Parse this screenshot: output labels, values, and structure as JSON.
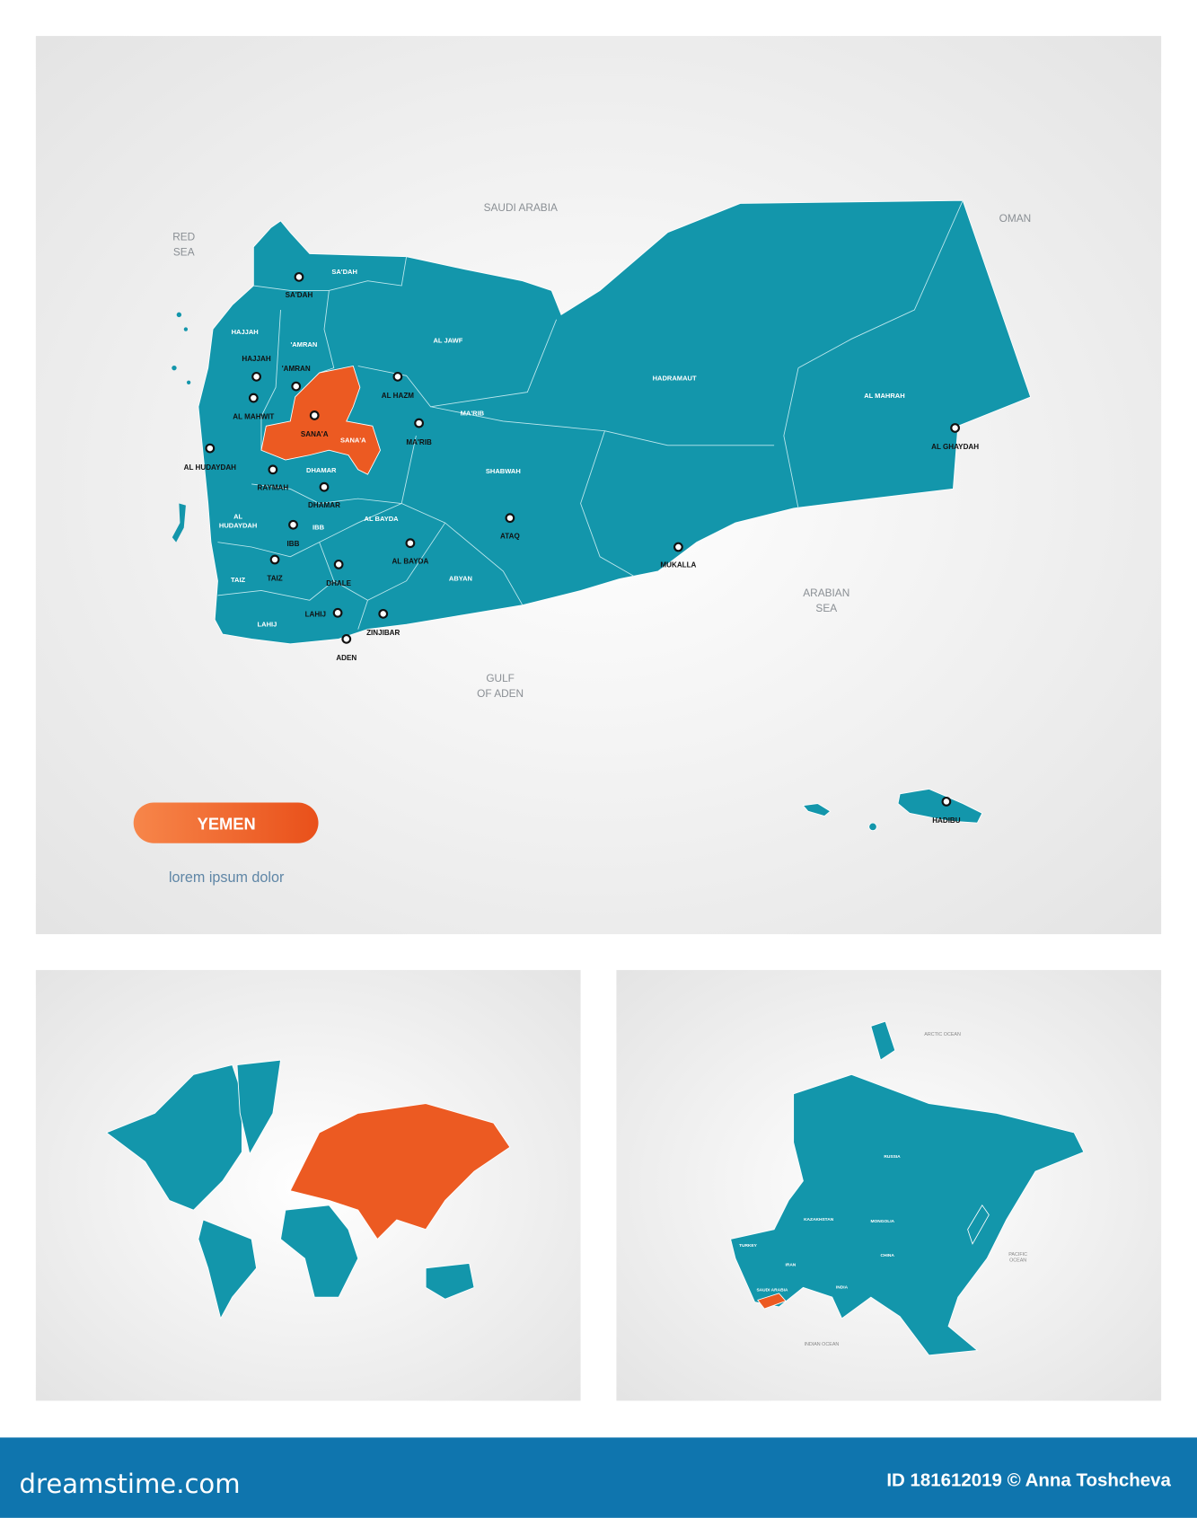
{
  "map": {
    "country": "YEMEN",
    "subtitle": "lorem ipsum dolor",
    "colors": {
      "land": "#1396ab",
      "highlight": "#ec5a22",
      "background": "#f2f2f2",
      "footer": "#0f75ae"
    },
    "neighbors": {
      "red_sea": [
        "RED",
        "SEA"
      ],
      "saudi_arabia": "SAUDI ARABIA",
      "oman": "OMAN",
      "arabian_sea": [
        "ARABIAN",
        "SEA"
      ],
      "gulf_of_aden": [
        "GULF",
        "OF ADEN"
      ]
    },
    "regions": [
      "SA'DAH",
      "HAJJAH",
      "'AMRAN",
      "AL JAWF",
      "MA'RIB",
      "SANA'A",
      "DHAMAR",
      "SHABWAH",
      "HADRAMAUT",
      "AL MAHRAH",
      "AL BAYDA",
      "IBB",
      "TAIZ",
      "ABYAN",
      "LAHIJ",
      "AL",
      "HUDAYDAH"
    ],
    "highlighted_region": "SANA'A",
    "cities": [
      "SA'DAH",
      "HAJJAH",
      "'AMRAN",
      "AL MAHWIT",
      "SANA'A",
      "AL HAZM",
      "MA'RIB",
      "AL HUDAYDAH",
      "RAYMAH",
      "DHAMAR",
      "IBB",
      "AL BAYDA",
      "ATAQ",
      "TAIZ",
      "DHALE",
      "LAHIJ",
      "ZINJIBAR",
      "ADEN",
      "MUKALLA",
      "AL GHAYDAH",
      "HADIBU"
    ]
  },
  "world_map": {
    "highlighted": "Eurasia"
  },
  "asia_map": {
    "labels": [
      "ARCTIC OCEAN",
      "RUSSIA",
      "KAZAKHSTAN",
      "MONGOLIA",
      "CHINA",
      "INDIA",
      "IRAN",
      "SAUDI ARABIA",
      "TURKEY"
    ],
    "seas": [
      "PACIFIC",
      "OCEAN",
      "INDIAN OCEAN"
    ],
    "highlighted": "Yemen"
  },
  "footer": {
    "brand": "dreamstime.com",
    "credit": "ID 181612019 © Anna Toshcheva"
  }
}
